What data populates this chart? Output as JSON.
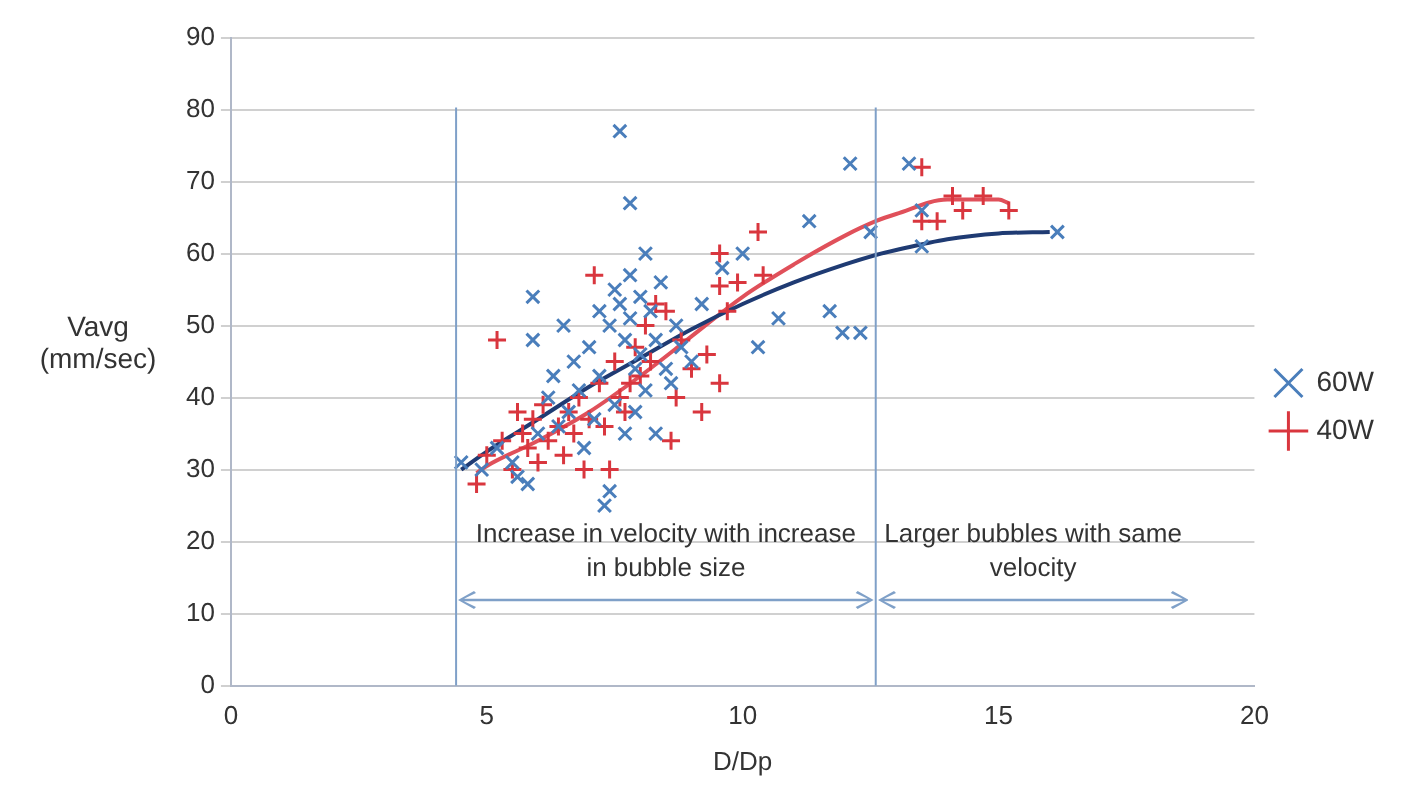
{
  "chart_data": {
    "type": "scatter",
    "xlabel": "D/Dp",
    "ylabel": "Vavg (mm/sec)",
    "xlim": [
      0,
      20
    ],
    "xticks": [
      0,
      5,
      10,
      15,
      20
    ],
    "ylim": [
      0,
      90
    ],
    "yticks": [
      0,
      10,
      20,
      30,
      40,
      50,
      60,
      70,
      80,
      90
    ],
    "grid": "y",
    "legend": "right",
    "series": [
      {
        "name": "60W",
        "color": "#4a7ebb",
        "marker": "x",
        "x": [
          4.5,
          4.9,
          5.2,
          5.5,
          5.6,
          5.8,
          5.9,
          5.9,
          6.0,
          6.2,
          6.3,
          6.4,
          6.5,
          6.6,
          6.7,
          6.8,
          6.9,
          7.0,
          7.1,
          7.2,
          7.2,
          7.3,
          7.4,
          7.4,
          7.5,
          7.5,
          7.6,
          7.6,
          7.7,
          7.7,
          7.8,
          7.8,
          7.8,
          7.9,
          7.9,
          8.0,
          8.0,
          8.1,
          8.1,
          8.2,
          8.3,
          8.3,
          8.4,
          8.5,
          8.6,
          8.7,
          8.8,
          9.0,
          9.2,
          9.6,
          10.0,
          10.3,
          10.7,
          11.3,
          11.7,
          11.95,
          12.1,
          12.3,
          12.5,
          13.25,
          13.5,
          13.5,
          16.15
        ],
        "values": [
          31,
          30,
          33,
          31,
          29,
          28,
          54,
          48,
          35,
          40,
          43,
          36,
          50,
          38,
          45,
          41,
          33,
          47,
          37,
          52,
          43,
          25,
          27,
          50,
          55,
          39,
          77,
          53,
          48,
          35,
          67,
          57,
          51,
          44,
          38,
          54,
          46,
          60,
          41,
          52,
          48,
          35,
          56,
          44,
          42,
          50,
          47,
          45,
          53,
          58,
          60,
          47,
          51,
          64.5,
          52,
          49,
          72.5,
          49,
          63,
          72.5,
          66,
          61,
          63
        ]
      },
      {
        "name": "40W",
        "color": "#d9363e",
        "marker": "cross",
        "x": [
          4.8,
          5.0,
          5.2,
          5.3,
          5.5,
          5.6,
          5.7,
          5.8,
          5.9,
          6.0,
          6.1,
          6.2,
          6.4,
          6.5,
          6.6,
          6.7,
          6.8,
          6.9,
          7.0,
          7.1,
          7.2,
          7.3,
          7.4,
          7.5,
          7.6,
          7.7,
          7.8,
          7.9,
          8.0,
          8.1,
          8.2,
          8.3,
          8.5,
          8.6,
          8.7,
          8.8,
          9.0,
          9.2,
          9.3,
          9.55,
          9.55,
          9.55,
          9.7,
          9.9,
          10.3,
          10.4,
          13.5,
          13.5,
          13.8,
          14.1,
          14.3,
          14.7,
          15.2
        ],
        "values": [
          28,
          32,
          48,
          34,
          30,
          38,
          35,
          33,
          37,
          31,
          39,
          34,
          36,
          32,
          38,
          35,
          40,
          30,
          37,
          57,
          42,
          36,
          30,
          45,
          40,
          38,
          42,
          47,
          43,
          50,
          45,
          53,
          52,
          34,
          40,
          48,
          44,
          38,
          46,
          60,
          55.5,
          42,
          52,
          56,
          63,
          57,
          72,
          64.5,
          64.5,
          68,
          66,
          68,
          66
        ]
      },
      {
        "type": "line",
        "color": "#1f3b73",
        "marker": "none",
        "x": [
          4.5,
          5,
          6,
          7,
          8,
          9,
          10,
          11,
          12,
          12.6,
          13,
          14,
          15,
          16
        ],
        "values": [
          30,
          32.5,
          37,
          41.5,
          45.5,
          49.5,
          53,
          56,
          58.5,
          59.8,
          60.5,
          62,
          62.8,
          63
        ]
      },
      {
        "type": "line",
        "color": "#e0505a",
        "marker": "none",
        "x": [
          4.8,
          5,
          6,
          7,
          8,
          9,
          10,
          11,
          12,
          12.6,
          13,
          14,
          15,
          15.2
        ],
        "values": [
          29.5,
          30.5,
          34,
          38,
          43,
          48.5,
          54,
          58.5,
          62.5,
          64.5,
          65.5,
          67.5,
          67.5,
          67
        ]
      }
    ],
    "ref_lines": [
      {
        "axis": "x",
        "value": 4.4,
        "color": "#7fa0c8"
      },
      {
        "axis": "x",
        "value": 12.6,
        "color": "#7fa0c8"
      }
    ],
    "annotations": [
      "Increase in velocity with increase in bubble size",
      "Larger bubbles with same velocity"
    ]
  }
}
